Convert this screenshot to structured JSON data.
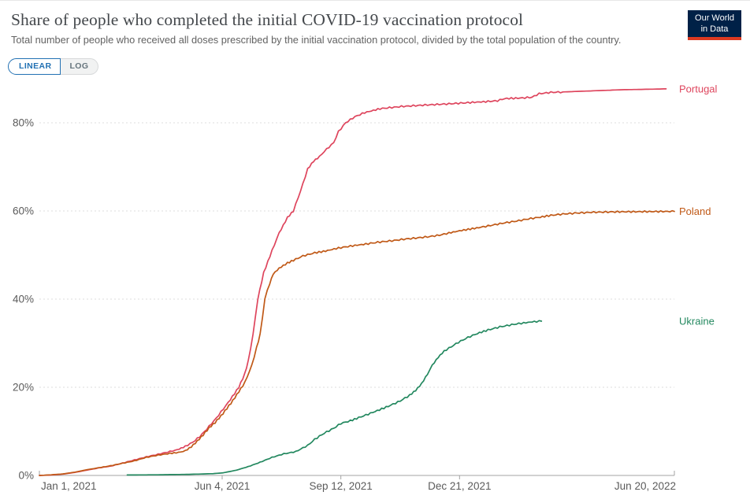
{
  "header": {
    "title": "Share of people who completed the initial COVID-19 vaccination protocol",
    "subtitle": "Total number of people who received all doses prescribed by the initial vaccination protocol, divided by the total population of the country.",
    "logo_line1": "Our World",
    "logo_line2": "in Data",
    "logo_bg": "#002147",
    "logo_stripe": "#dc3a21"
  },
  "toggle": {
    "linear": "LINEAR",
    "log": "LOG",
    "accent": "#2271b3"
  },
  "chart_data": {
    "type": "line",
    "title": "Share of people who completed the initial COVID-19 vaccination protocol",
    "xlabel": "",
    "ylabel": "",
    "grid": "dashed horizontal",
    "legend_position": "right-end-labels",
    "x_axis": {
      "start_label": "Jan 1, 2021",
      "end_label": "Jun 20, 2022",
      "range_days": [
        0,
        535
      ],
      "ticks": [
        {
          "day": 0,
          "label": "Jan 1, 2021"
        },
        {
          "day": 154,
          "label": "Jun 4, 2021"
        },
        {
          "day": 254,
          "label": "Sep 12, 2021"
        },
        {
          "day": 354,
          "label": "Dec 21, 2021"
        },
        {
          "day": 535,
          "label": "Jun 20, 2022"
        }
      ]
    },
    "y_axis": {
      "unit": "%",
      "ticks": [
        0,
        20,
        40,
        60,
        80
      ],
      "range": [
        0,
        90
      ]
    },
    "series": [
      {
        "name": "Portugal",
        "color": "#de455d",
        "final_value_pct": 87.7,
        "points": [
          [
            0,
            0
          ],
          [
            10,
            0.1
          ],
          [
            20,
            0.3
          ],
          [
            30,
            0.7
          ],
          [
            40,
            1.2
          ],
          [
            50,
            1.7
          ],
          [
            60,
            2.1
          ],
          [
            70,
            2.8
          ],
          [
            80,
            3.5
          ],
          [
            90,
            4.2
          ],
          [
            100,
            4.8
          ],
          [
            108,
            5.3
          ],
          [
            116,
            5.8
          ],
          [
            123,
            6.6
          ],
          [
            129,
            7.5
          ],
          [
            135,
            8.8
          ],
          [
            141,
            10.5
          ],
          [
            149,
            13
          ],
          [
            159,
            16.5
          ],
          [
            168,
            20
          ],
          [
            173,
            23
          ],
          [
            176,
            26
          ],
          [
            180,
            32
          ],
          [
            184,
            40
          ],
          [
            189,
            46
          ],
          [
            196,
            51
          ],
          [
            202,
            55
          ],
          [
            209,
            58.5
          ],
          [
            214,
            60
          ],
          [
            220,
            64.5
          ],
          [
            226,
            69.5
          ],
          [
            231,
            71.3
          ],
          [
            236,
            72.3
          ],
          [
            240,
            73.5
          ],
          [
            248,
            75.5
          ],
          [
            252,
            78
          ],
          [
            258,
            80
          ],
          [
            266,
            81.4
          ],
          [
            274,
            82.3
          ],
          [
            287,
            83.2
          ],
          [
            305,
            83.7
          ],
          [
            323,
            84
          ],
          [
            345,
            84.3
          ],
          [
            363,
            84.6
          ],
          [
            376,
            84.8
          ],
          [
            386,
            85
          ],
          [
            392,
            85.5
          ],
          [
            405,
            85.6
          ],
          [
            415,
            85.8
          ],
          [
            421,
            86.6
          ],
          [
            431,
            86.9
          ],
          [
            451,
            87.1
          ],
          [
            471,
            87.3
          ],
          [
            491,
            87.5
          ],
          [
            511,
            87.6
          ],
          [
            528,
            87.7
          ]
        ]
      },
      {
        "name": "Poland",
        "color": "#c05917",
        "final_value_pct": 59.9,
        "points": [
          [
            0,
            0
          ],
          [
            10,
            0.15
          ],
          [
            20,
            0.35
          ],
          [
            30,
            0.75
          ],
          [
            40,
            1.3
          ],
          [
            50,
            1.75
          ],
          [
            60,
            2.2
          ],
          [
            70,
            2.75
          ],
          [
            80,
            3.3
          ],
          [
            90,
            4.1
          ],
          [
            100,
            4.6
          ],
          [
            110,
            5
          ],
          [
            117,
            5.2
          ],
          [
            123,
            5.6
          ],
          [
            128,
            6.5
          ],
          [
            133,
            7.8
          ],
          [
            138,
            9.2
          ],
          [
            143,
            10.8
          ],
          [
            148,
            12
          ],
          [
            153,
            13.5
          ],
          [
            158,
            15.2
          ],
          [
            163,
            17
          ],
          [
            168,
            19
          ],
          [
            173,
            21
          ],
          [
            179,
            25
          ],
          [
            183,
            29
          ],
          [
            186,
            32
          ],
          [
            188,
            36
          ],
          [
            190,
            40
          ],
          [
            192,
            42
          ],
          [
            194,
            43.5
          ],
          [
            197,
            45.7
          ],
          [
            202,
            47
          ],
          [
            209,
            48.2
          ],
          [
            214,
            48.8
          ],
          [
            222,
            49.8
          ],
          [
            232,
            50.5
          ],
          [
            241,
            50.9
          ],
          [
            252,
            51.6
          ],
          [
            264,
            52.1
          ],
          [
            275,
            52.5
          ],
          [
            285,
            52.9
          ],
          [
            299,
            53.3
          ],
          [
            307,
            53.6
          ],
          [
            319,
            53.9
          ],
          [
            329,
            54.2
          ],
          [
            337,
            54.5
          ],
          [
            345,
            55
          ],
          [
            354,
            55.5
          ],
          [
            363,
            55.9
          ],
          [
            372,
            56.3
          ],
          [
            382,
            56.8
          ],
          [
            392,
            57.3
          ],
          [
            402,
            57.7
          ],
          [
            412,
            58.2
          ],
          [
            422,
            58.6
          ],
          [
            431,
            59
          ],
          [
            441,
            59.3
          ],
          [
            451,
            59.5
          ],
          [
            465,
            59.7
          ],
          [
            485,
            59.8
          ],
          [
            510,
            59.85
          ],
          [
            535,
            59.9
          ]
        ]
      },
      {
        "name": "Ukraine",
        "color": "#23885f",
        "final_value_pct": 35.0,
        "points": [
          [
            74,
            0.1
          ],
          [
            100,
            0.15
          ],
          [
            126,
            0.25
          ],
          [
            146,
            0.4
          ],
          [
            155,
            0.6
          ],
          [
            166,
            1.2
          ],
          [
            176,
            2
          ],
          [
            186,
            3
          ],
          [
            196,
            4.1
          ],
          [
            206,
            4.9
          ],
          [
            216,
            5.4
          ],
          [
            226,
            6.8
          ],
          [
            232,
            8.2
          ],
          [
            240,
            9.6
          ],
          [
            248,
            10.7
          ],
          [
            254,
            11.8
          ],
          [
            262,
            12.4
          ],
          [
            269,
            13.1
          ],
          [
            281,
            14.3
          ],
          [
            294,
            15.7
          ],
          [
            304,
            16.9
          ],
          [
            312,
            18.2
          ],
          [
            317,
            19.3
          ],
          [
            322,
            20.8
          ],
          [
            327,
            23
          ],
          [
            331,
            25
          ],
          [
            336,
            26.8
          ],
          [
            341,
            28.2
          ],
          [
            347,
            29.2
          ],
          [
            353,
            30.2
          ],
          [
            361,
            31.3
          ],
          [
            369,
            32.2
          ],
          [
            378,
            33
          ],
          [
            388,
            33.7
          ],
          [
            398,
            34.2
          ],
          [
            408,
            34.6
          ],
          [
            417,
            34.9
          ],
          [
            423,
            35
          ]
        ]
      }
    ]
  }
}
